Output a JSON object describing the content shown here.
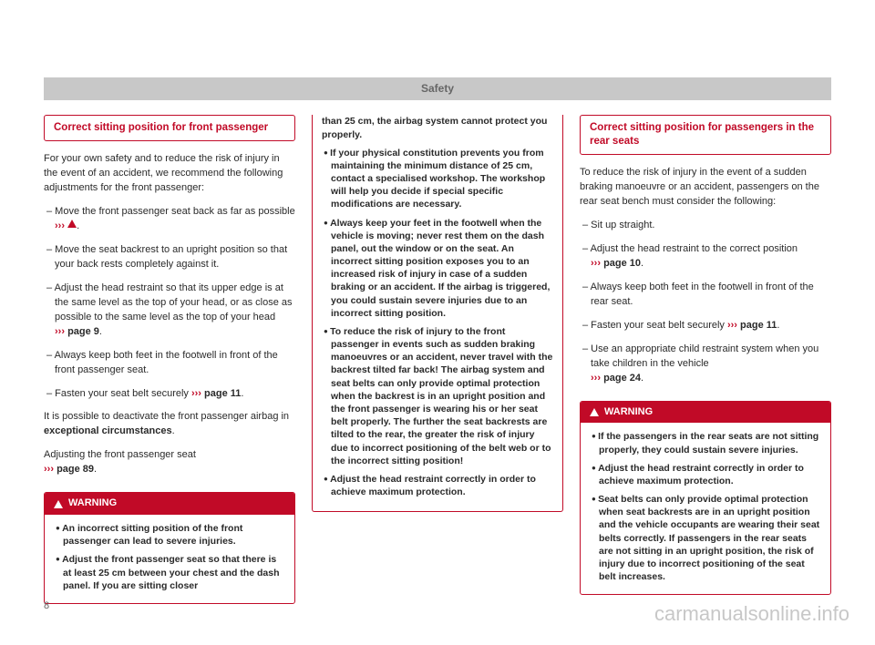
{
  "header": {
    "title": "Safety"
  },
  "pageNumber": "8",
  "watermark": "carmanualsonline.info",
  "col1": {
    "heading": "Correct sitting position for front passenger",
    "intro": "For your own safety and to reduce the risk of injury in the event of an accident, we recommend the following adjustments for the front passenger:",
    "item1_pre": "– Move the front passenger seat back as far as possible ",
    "item1_post": ".",
    "item2": "– Move the seat backrest to an upright position so that your back rests completely against it.",
    "item3_pre": "– Adjust the head restraint so that its upper edge is at the same level as the top of your head, or as close as possible to the same level as the top of your head ",
    "item3_ref": "page 9",
    "item3_post": ".",
    "item4": "– Always keep both feet in the footwell in front of the front passenger seat.",
    "item5_pre": "– Fasten your seat belt securely ",
    "item5_ref": "page 11",
    "item5_post": ".",
    "para2_a": "It is possible to deactivate the front passenger airbag in ",
    "para2_b": "exceptional circumstances",
    "para2_c": ".",
    "para3_a": "Adjusting the front passenger seat",
    "para3_ref": "page 89",
    "para3_post": ".",
    "warnLabel": "WARNING",
    "warn1": "An incorrect sitting position of the front passenger can lead to severe injuries.",
    "warn2": "Adjust the front passenger seat so that there is at least 25 cm between your chest and the dash panel. If you are sitting closer"
  },
  "col2": {
    "contFirst": "than 25 cm, the airbag system cannot protect you properly.",
    "b1": "If your physical constitution prevents you from maintaining the minimum distance of 25 cm, contact a specialised workshop. The workshop will help you decide if special specific modifications are necessary.",
    "b2": "Always keep your feet in the footwell when the vehicle is moving; never rest them on the dash panel, out the window or on the seat. An incorrect sitting position exposes you to an increased risk of injury in case of a sudden braking or an accident. If the airbag is triggered, you could sustain severe injuries due to an incorrect sitting position.",
    "b3": "To reduce the risk of injury to the front passenger in events such as sudden braking manoeuvres or an accident, never travel with the backrest tilted far back! The airbag system and seat belts can only provide optimal protection when the backrest is in an upright position and the front passenger is wearing his or her seat belt properly. The further the seat backrests are tilted to the rear, the greater the risk of injury due to incorrect positioning of the belt web or to the incorrect sitting position!",
    "b4": "Adjust the head restraint correctly in order to achieve maximum protection."
  },
  "col3": {
    "heading": "Correct sitting position for passengers in the rear seats",
    "intro": "To reduce the risk of injury in the event of a sudden braking manoeuvre or an accident, passengers on the rear seat bench must consider the following:",
    "item1": "– Sit up straight.",
    "item2_pre": "– Adjust the head restraint to the correct position ",
    "item2_ref": "page 10",
    "item2_post": ".",
    "item3": "– Always keep both feet in the footwell in front of the rear seat.",
    "item4_pre": "– Fasten your seat belt securely ",
    "item4_ref": "page 11",
    "item4_post": ".",
    "item5_pre": "– Use an appropriate child restraint system when you take children in the vehicle ",
    "item5_ref": "page 24",
    "item5_post": ".",
    "warnLabel": "WARNING",
    "w1": "If the passengers in the rear seats are not sitting properly, they could sustain severe injuries.",
    "w2": "Adjust the head restraint correctly in order to achieve maximum protection.",
    "w3": "Seat belts can only provide optimal protection when seat backrests are in an upright position and the vehicle occupants are wearing their seat belts correctly. If passengers in the rear seats are not sitting in an upright position, the risk of injury due to incorrect positioning of the seat belt increases."
  },
  "refArrow": "›››"
}
